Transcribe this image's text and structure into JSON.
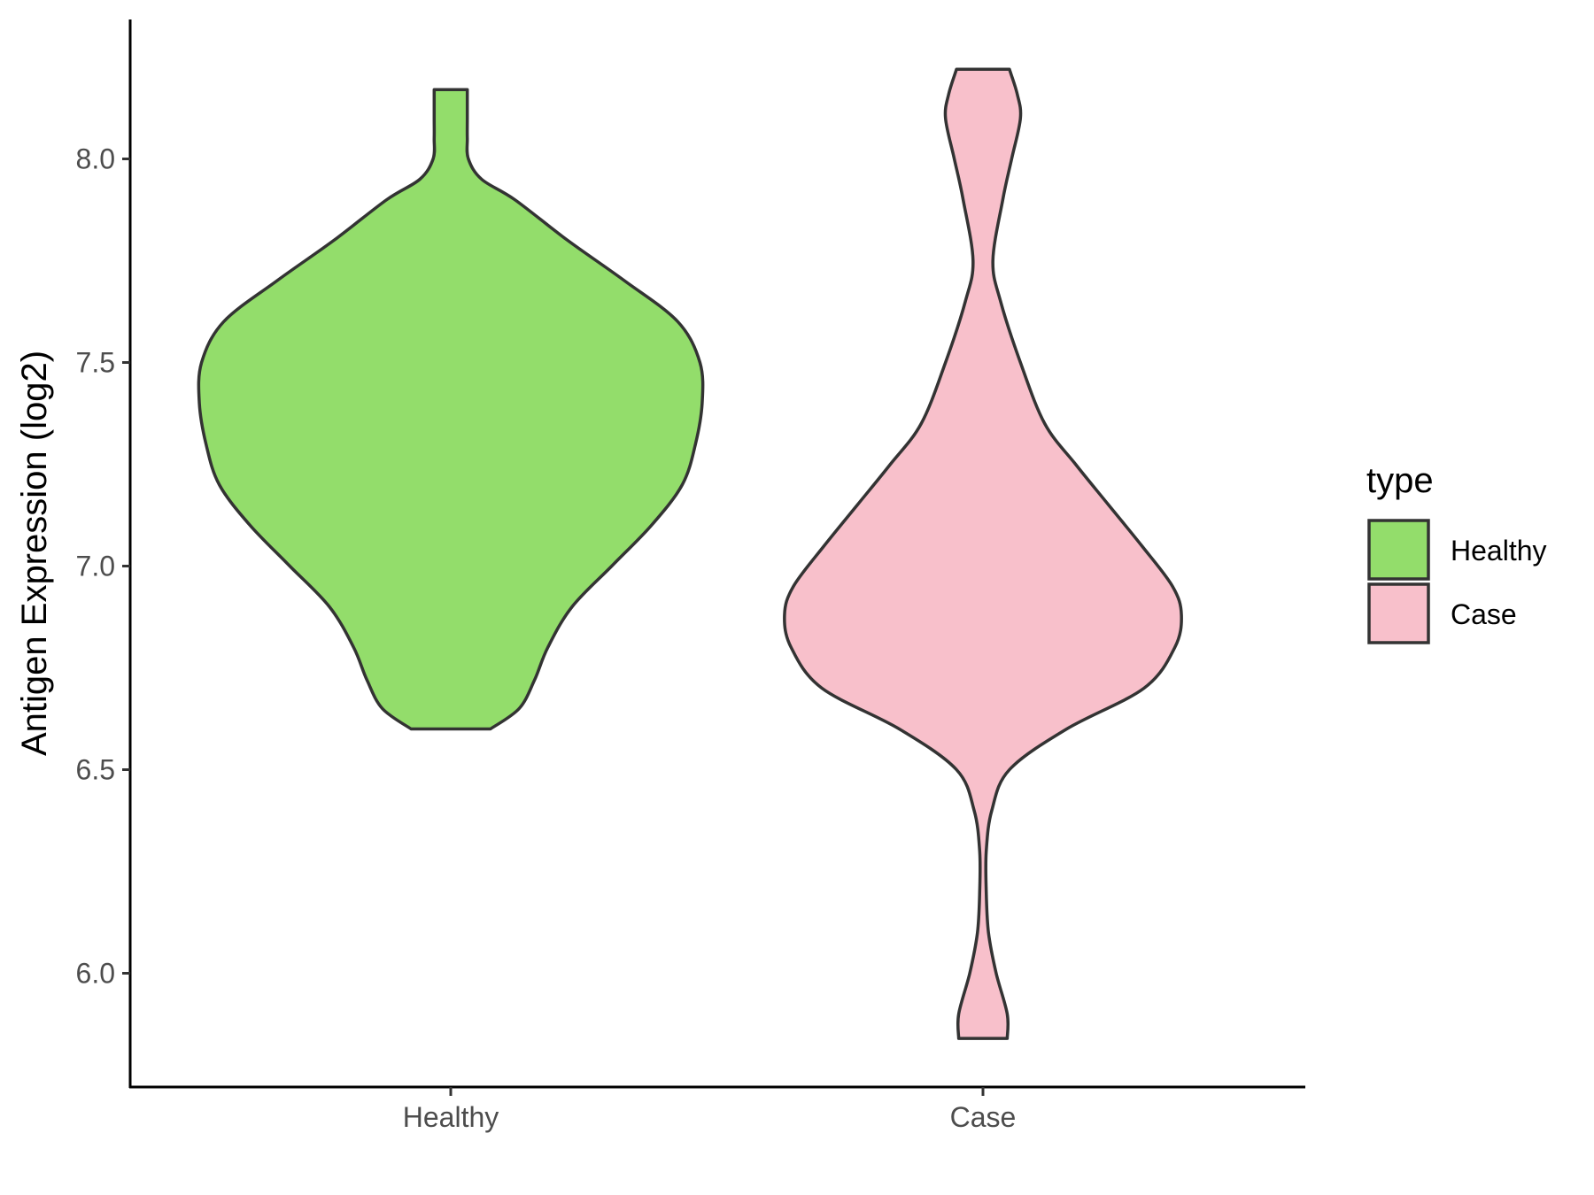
{
  "chart_data": {
    "type": "violin",
    "title": "",
    "xlabel": "",
    "ylabel": "Antigen Expression (log2)",
    "categories": [
      "Healthy",
      "Case"
    ],
    "y_ticks": [
      "6.0",
      "6.5",
      "7.0",
      "7.5",
      "8.0"
    ],
    "ylim": [
      5.72,
      8.34
    ],
    "grid": false,
    "legend": {
      "title": "type",
      "placement": "right",
      "entries": [
        {
          "label": "Healthy",
          "color": "#93dd6b"
        },
        {
          "label": "Case",
          "color": "#f8c0cb"
        }
      ]
    },
    "series": [
      {
        "category": "Healthy",
        "color": "#93dd6b",
        "min": 6.6,
        "max": 8.17,
        "density_profile": [
          [
            6.6,
            0.18
          ],
          [
            6.65,
            0.31
          ],
          [
            6.72,
            0.38
          ],
          [
            6.8,
            0.44
          ],
          [
            6.9,
            0.55
          ],
          [
            7.0,
            0.73
          ],
          [
            7.1,
            0.91
          ],
          [
            7.2,
            1.05
          ],
          [
            7.3,
            1.11
          ],
          [
            7.4,
            1.14
          ],
          [
            7.5,
            1.13
          ],
          [
            7.6,
            1.03
          ],
          [
            7.7,
            0.79
          ],
          [
            7.8,
            0.53
          ],
          [
            7.9,
            0.29
          ],
          [
            7.95,
            0.14
          ],
          [
            8.0,
            0.08
          ],
          [
            8.05,
            0.075
          ],
          [
            8.1,
            0.075
          ],
          [
            8.17,
            0.075
          ]
        ]
      },
      {
        "category": "Case",
        "color": "#f8c0cb",
        "min": 5.84,
        "max": 8.22,
        "density_profile": [
          [
            5.84,
            0.11
          ],
          [
            5.9,
            0.11
          ],
          [
            6.0,
            0.06
          ],
          [
            6.1,
            0.025
          ],
          [
            6.2,
            0.015
          ],
          [
            6.3,
            0.015
          ],
          [
            6.4,
            0.04
          ],
          [
            6.5,
            0.12
          ],
          [
            6.6,
            0.38
          ],
          [
            6.7,
            0.73
          ],
          [
            6.8,
            0.87
          ],
          [
            6.88,
            0.9
          ],
          [
            6.95,
            0.86
          ],
          [
            7.05,
            0.72
          ],
          [
            7.15,
            0.57
          ],
          [
            7.25,
            0.42
          ],
          [
            7.35,
            0.28
          ],
          [
            7.5,
            0.17
          ],
          [
            7.65,
            0.08
          ],
          [
            7.75,
            0.045
          ],
          [
            7.9,
            0.09
          ],
          [
            8.0,
            0.13
          ],
          [
            8.1,
            0.17
          ],
          [
            8.16,
            0.155
          ],
          [
            8.22,
            0.12
          ]
        ]
      }
    ]
  }
}
